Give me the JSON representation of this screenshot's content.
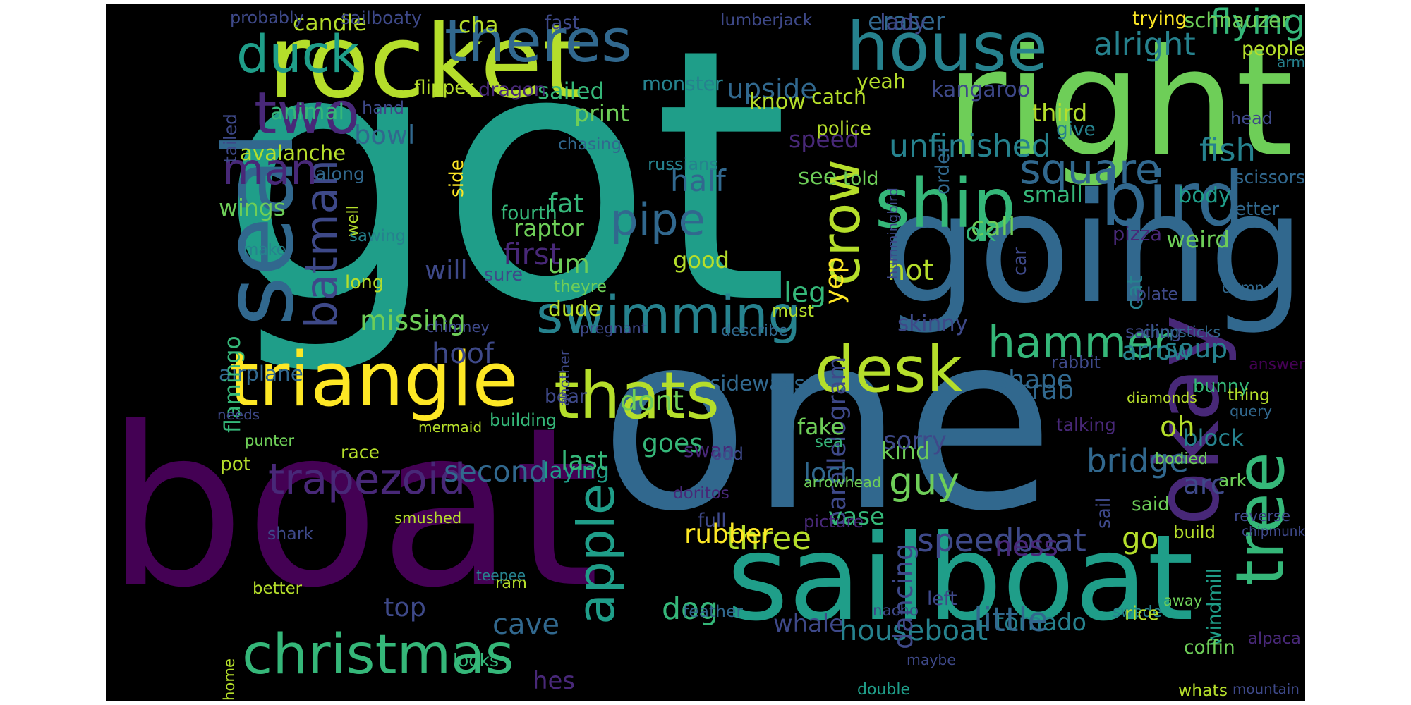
{
  "chart_data": {
    "type": "wordcloud",
    "title": "",
    "background": "#000000",
    "palette": [
      "#440154",
      "#482878",
      "#3e4989",
      "#31688e",
      "#26828e",
      "#1f9e89",
      "#35b779",
      "#6ece58",
      "#b5de2b",
      "#fde725"
    ],
    "words": [
      {
        "text": "got",
        "color": "#1f9e89"
      },
      {
        "text": "boat",
        "color": "#440154"
      },
      {
        "text": "one",
        "color": "#31688e"
      },
      {
        "text": "right",
        "color": "#6ece58"
      },
      {
        "text": "going",
        "color": "#31688e"
      },
      {
        "text": "sailboat",
        "color": "#1f9e89"
      },
      {
        "text": "rocket",
        "color": "#b5de2b"
      },
      {
        "text": "okay",
        "color": "#482878"
      },
      {
        "text": "triangle",
        "color": "#fde725"
      },
      {
        "text": "seal",
        "color": "#31688e"
      },
      {
        "text": "theres",
        "color": "#31688e"
      },
      {
        "text": "house",
        "color": "#26828e"
      },
      {
        "text": "swimming",
        "color": "#26828e"
      },
      {
        "text": "bird",
        "color": "#31688e"
      },
      {
        "text": "duck",
        "color": "#1f9e89"
      },
      {
        "text": "christmas",
        "color": "#35b779"
      },
      {
        "text": "batman",
        "color": "#3e4989"
      },
      {
        "text": "tree",
        "color": "#35b779"
      },
      {
        "text": "ship",
        "color": "#35b779"
      },
      {
        "text": "hammer",
        "color": "#35b779"
      },
      {
        "text": "two",
        "color": "#482878"
      },
      {
        "text": "thats",
        "color": "#b5de2b"
      },
      {
        "text": "desk",
        "color": "#b5de2b"
      },
      {
        "text": "crow",
        "color": "#b5de2b"
      },
      {
        "text": "man",
        "color": "#482878"
      },
      {
        "text": "trapezoid",
        "color": "#482878"
      },
      {
        "text": "apple",
        "color": "#1f9e89"
      },
      {
        "text": "square",
        "color": "#31688e"
      },
      {
        "text": "pipe",
        "color": "#31688e"
      },
      {
        "text": "guy",
        "color": "#6ece58"
      },
      {
        "text": "speedboat",
        "color": "#3e4989"
      },
      {
        "text": "unfinished",
        "color": "#26828e"
      },
      {
        "text": "bridge",
        "color": "#31688e"
      },
      {
        "text": "houseboat",
        "color": "#26828e"
      },
      {
        "text": "flying",
        "color": "#35b779"
      },
      {
        "text": "alright",
        "color": "#26828e"
      },
      {
        "text": "upside",
        "color": "#31688e"
      },
      {
        "text": "missing",
        "color": "#6ece58"
      },
      {
        "text": "second",
        "color": "#31688e"
      },
      {
        "text": "three",
        "color": "#b5de2b"
      },
      {
        "text": "fish",
        "color": "#26828e"
      },
      {
        "text": "know",
        "color": "#b5de2b"
      },
      {
        "text": "shape",
        "color": "#31688e"
      },
      {
        "text": "cave",
        "color": "#31688e"
      },
      {
        "text": "soup",
        "color": "#26828e"
      },
      {
        "text": "arrow",
        "color": "#26828e"
      },
      {
        "text": "dont",
        "color": "#6ece58"
      },
      {
        "text": "parallelogram",
        "color": "#3e4989"
      },
      {
        "text": "half",
        "color": "#31688e"
      },
      {
        "text": "avalanche",
        "color": "#b5de2b"
      },
      {
        "text": "first",
        "color": "#482878"
      },
      {
        "text": "plant",
        "color": "#3e4989"
      },
      {
        "text": "sideways",
        "color": "#31688e"
      },
      {
        "text": "goes",
        "color": "#35b779"
      },
      {
        "text": "laying",
        "color": "#1f9e89"
      },
      {
        "text": "dog",
        "color": "#35b779"
      },
      {
        "text": "whale",
        "color": "#3e4989"
      },
      {
        "text": "tornado",
        "color": "#26828e"
      },
      {
        "text": "little",
        "color": "#31688e"
      },
      {
        "text": "rubber",
        "color": "#fde725"
      },
      {
        "text": "arc",
        "color": "#3e4989"
      },
      {
        "text": "block",
        "color": "#26828e"
      },
      {
        "text": "bunny",
        "color": "#35b779"
      },
      {
        "text": "airplane",
        "color": "#31688e"
      },
      {
        "text": "swan",
        "color": "#482878"
      },
      {
        "text": "last",
        "color": "#35b779"
      },
      {
        "text": "loch",
        "color": "#31688e"
      },
      {
        "text": "kind",
        "color": "#6ece58"
      },
      {
        "text": "sorry",
        "color": "#3e4989"
      },
      {
        "text": "fake",
        "color": "#6ece58"
      },
      {
        "text": "ness",
        "color": "#482878"
      },
      {
        "text": "vase",
        "color": "#35b779"
      },
      {
        "text": "dancing",
        "color": "#3e4989"
      },
      {
        "text": "windmill",
        "color": "#1f9e89"
      },
      {
        "text": "speed",
        "color": "#482878"
      },
      {
        "text": "call",
        "color": "#6ece58"
      },
      {
        "text": "hot",
        "color": "#b5de2b"
      },
      {
        "text": "good",
        "color": "#b5de2b"
      },
      {
        "text": "wings",
        "color": "#6ece58"
      },
      {
        "text": "weird",
        "color": "#6ece58"
      },
      {
        "text": "top",
        "color": "#3e4989"
      },
      {
        "text": "hes",
        "color": "#482878"
      },
      {
        "text": "go",
        "color": "#b5de2b"
      },
      {
        "text": "oh",
        "color": "#b5de2b"
      },
      {
        "text": "yep",
        "color": "#fde725"
      },
      {
        "text": "leg",
        "color": "#35b779"
      },
      {
        "text": "skinny",
        "color": "#3e4989"
      },
      {
        "text": "hoof",
        "color": "#3e4989"
      },
      {
        "text": "crab",
        "color": "#31688e"
      },
      {
        "text": "flamingo",
        "color": "#35b779"
      },
      {
        "text": "bowl",
        "color": "#31688e"
      },
      {
        "text": "animal",
        "color": "#35b779"
      },
      {
        "text": "raptor",
        "color": "#6ece58"
      },
      {
        "text": "dude",
        "color": "#b5de2b"
      },
      {
        "text": "um",
        "color": "#6ece58"
      },
      {
        "text": "fat",
        "color": "#35b779"
      },
      {
        "text": "see",
        "color": "#6ece58"
      },
      {
        "text": "ok",
        "color": "#35b779"
      },
      {
        "text": "small",
        "color": "#35b779"
      },
      {
        "text": "cat",
        "color": "#26828e"
      },
      {
        "text": "will",
        "color": "#3e4989"
      },
      {
        "text": "body",
        "color": "#1f9e89"
      },
      {
        "text": "pizza",
        "color": "#482878"
      },
      {
        "text": "sail",
        "color": "#3e4989"
      },
      {
        "text": "people",
        "color": "#b5de2b"
      },
      {
        "text": "schnauzer",
        "color": "#6ece58"
      },
      {
        "text": "sailed",
        "color": "#35b779"
      },
      {
        "text": "yeah",
        "color": "#b5de2b"
      },
      {
        "text": "third",
        "color": "#b5de2b"
      },
      {
        "text": "kangaroo",
        "color": "#3e4989"
      },
      {
        "text": "monster",
        "color": "#26828e"
      },
      {
        "text": "catch",
        "color": "#b5de2b"
      },
      {
        "text": "print",
        "color": "#6ece58"
      },
      {
        "text": "dragon",
        "color": "#482878"
      },
      {
        "text": "candle",
        "color": "#b5de2b"
      },
      {
        "text": "cha",
        "color": "#b5de2b"
      },
      {
        "text": "eraser",
        "color": "#31688e"
      },
      {
        "text": "lady",
        "color": "#3e4989"
      },
      {
        "text": "sailboaty",
        "color": "#3e4989"
      },
      {
        "text": "probably",
        "color": "#3e4989"
      },
      {
        "text": "fast",
        "color": "#3e4989"
      },
      {
        "text": "lumberjack",
        "color": "#3e4989"
      },
      {
        "text": "trying",
        "color": "#fde725"
      },
      {
        "text": "arm",
        "color": "#26828e"
      },
      {
        "text": "flipper",
        "color": "#b5de2b"
      },
      {
        "text": "hand",
        "color": "#3e4989"
      },
      {
        "text": "police",
        "color": "#b5de2b"
      },
      {
        "text": "give",
        "color": "#26828e"
      },
      {
        "text": "head",
        "color": "#3e4989"
      },
      {
        "text": "tailed",
        "color": "#3e4989"
      },
      {
        "text": "chasing",
        "color": "#31688e"
      },
      {
        "text": "russians",
        "color": "#26828e"
      },
      {
        "text": "along",
        "color": "#31688e"
      },
      {
        "text": "side",
        "color": "#fde725"
      },
      {
        "text": "told",
        "color": "#6ece58"
      },
      {
        "text": "order",
        "color": "#31688e"
      },
      {
        "text": "scissors",
        "color": "#31688e"
      },
      {
        "text": "fourth",
        "color": "#35b779"
      },
      {
        "text": "well",
        "color": "#b5de2b"
      },
      {
        "text": "letter",
        "color": "#31688e"
      },
      {
        "text": "hummingbird",
        "color": "#3e4989"
      },
      {
        "text": "make",
        "color": "#26828e"
      },
      {
        "text": "sawing",
        "color": "#26828e"
      },
      {
        "text": "sure",
        "color": "#3e4989"
      },
      {
        "text": "long",
        "color": "#b5de2b"
      },
      {
        "text": "theyre",
        "color": "#6ece58"
      },
      {
        "text": "plate",
        "color": "#3e4989"
      },
      {
        "text": "car",
        "color": "#3e4989"
      },
      {
        "text": "damn",
        "color": "#31688e"
      },
      {
        "text": "must",
        "color": "#b5de2b"
      },
      {
        "text": "chimney",
        "color": "#3e4989"
      },
      {
        "text": "pregnant",
        "color": "#3e4989"
      },
      {
        "text": "describe",
        "color": "#31688e"
      },
      {
        "text": "sailing",
        "color": "#3e4989"
      },
      {
        "text": "chopsticks",
        "color": "#31688e"
      },
      {
        "text": "rabbit",
        "color": "#3e4989"
      },
      {
        "text": "another",
        "color": "#3e4989"
      },
      {
        "text": "bear",
        "color": "#3e4989"
      },
      {
        "text": "answer",
        "color": "#440154"
      },
      {
        "text": "diamonds",
        "color": "#b5de2b"
      },
      {
        "text": "thing",
        "color": "#b5de2b"
      },
      {
        "text": "needs",
        "color": "#3e4989"
      },
      {
        "text": "query",
        "color": "#31688e"
      },
      {
        "text": "punter",
        "color": "#6ece58"
      },
      {
        "text": "building",
        "color": "#35b779"
      },
      {
        "text": "mermaid",
        "color": "#b5de2b"
      },
      {
        "text": "talking",
        "color": "#482878"
      },
      {
        "text": "race",
        "color": "#b5de2b"
      },
      {
        "text": "pot",
        "color": "#b5de2b"
      },
      {
        "text": "sea",
        "color": "#35b779"
      },
      {
        "text": "odd",
        "color": "#3e4989"
      },
      {
        "text": "arrowhead",
        "color": "#6ece58"
      },
      {
        "text": "bodied",
        "color": "#6ece58"
      },
      {
        "text": "ark",
        "color": "#6ece58"
      },
      {
        "text": "doritos",
        "color": "#482878"
      },
      {
        "text": "full",
        "color": "#3e4989"
      },
      {
        "text": "picture",
        "color": "#482878"
      },
      {
        "text": "said",
        "color": "#6ece58"
      },
      {
        "text": "reverse",
        "color": "#3e4989"
      },
      {
        "text": "chipmunk",
        "color": "#3e4989"
      },
      {
        "text": "smushed",
        "color": "#b5de2b"
      },
      {
        "text": "shark",
        "color": "#3e4989"
      },
      {
        "text": "build",
        "color": "#b5de2b"
      },
      {
        "text": "teepee",
        "color": "#26828e"
      },
      {
        "text": "ram",
        "color": "#b5de2b"
      },
      {
        "text": "better",
        "color": "#b5de2b"
      },
      {
        "text": "nacho",
        "color": "#3e4989"
      },
      {
        "text": "left",
        "color": "#3e4989"
      },
      {
        "text": "feather",
        "color": "#31688e"
      },
      {
        "text": "swede",
        "color": "#26828e"
      },
      {
        "text": "away",
        "color": "#6ece58"
      },
      {
        "text": "rice",
        "color": "#b5de2b"
      },
      {
        "text": "alpaca",
        "color": "#482878"
      },
      {
        "text": "coffin",
        "color": "#6ece58"
      },
      {
        "text": "looks",
        "color": "#35b779"
      },
      {
        "text": "maybe",
        "color": "#3e4989"
      },
      {
        "text": "home",
        "color": "#b5de2b"
      },
      {
        "text": "double",
        "color": "#1f9e89"
      },
      {
        "text": "whats",
        "color": "#b5de2b"
      },
      {
        "text": "mountain",
        "color": "#3e4989"
      }
    ]
  }
}
